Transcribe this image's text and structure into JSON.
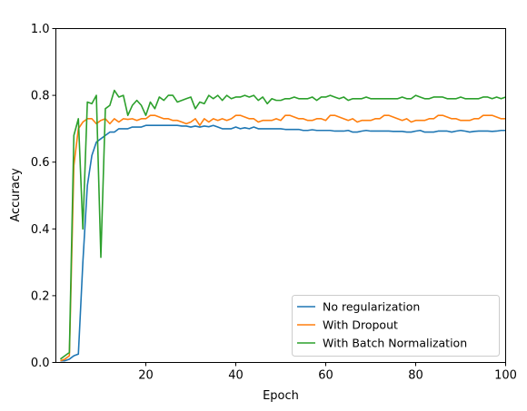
{
  "chart_data": {
    "type": "line",
    "xlabel": "Epoch",
    "ylabel": "Accuracy",
    "xlim": [
      0,
      100
    ],
    "ylim": [
      0,
      1.0
    ],
    "xticks": [
      20,
      40,
      60,
      80,
      100
    ],
    "xtick_labels": [
      "20",
      "40",
      "60",
      "80",
      "100"
    ],
    "yticks": [
      0.0,
      0.2,
      0.4,
      0.6,
      0.8,
      1.0
    ],
    "ytick_labels": [
      "0.0",
      "0.2",
      "0.4",
      "0.6",
      "0.8",
      "1.0"
    ],
    "grid": false,
    "legend_position": "lower-right",
    "x": [
      1,
      2,
      3,
      4,
      5,
      6,
      7,
      8,
      9,
      10,
      11,
      12,
      13,
      14,
      15,
      16,
      17,
      18,
      19,
      20,
      21,
      22,
      23,
      24,
      25,
      26,
      27,
      28,
      29,
      30,
      31,
      32,
      33,
      34,
      35,
      36,
      37,
      38,
      39,
      40,
      41,
      42,
      43,
      44,
      45,
      46,
      47,
      48,
      49,
      50,
      51,
      52,
      53,
      54,
      55,
      56,
      57,
      58,
      59,
      60,
      61,
      62,
      63,
      64,
      65,
      66,
      67,
      68,
      69,
      70,
      71,
      72,
      73,
      74,
      75,
      76,
      77,
      78,
      79,
      80,
      81,
      82,
      83,
      84,
      85,
      86,
      87,
      88,
      89,
      90,
      91,
      92,
      93,
      94,
      95,
      96,
      97,
      98,
      99,
      100
    ],
    "series": [
      {
        "name": "No regularization",
        "color": "#1f77b4",
        "values": [
          0.005,
          0.005,
          0.01,
          0.02,
          0.025,
          0.3,
          0.53,
          0.62,
          0.66,
          0.67,
          0.68,
          0.69,
          0.69,
          0.7,
          0.7,
          0.7,
          0.705,
          0.705,
          0.705,
          0.71,
          0.71,
          0.71,
          0.71,
          0.71,
          0.71,
          0.71,
          0.71,
          0.708,
          0.708,
          0.705,
          0.708,
          0.705,
          0.708,
          0.706,
          0.71,
          0.705,
          0.7,
          0.7,
          0.7,
          0.705,
          0.7,
          0.703,
          0.7,
          0.705,
          0.7,
          0.7,
          0.7,
          0.7,
          0.7,
          0.7,
          0.698,
          0.698,
          0.698,
          0.698,
          0.695,
          0.695,
          0.697,
          0.695,
          0.695,
          0.695,
          0.695,
          0.693,
          0.693,
          0.693,
          0.695,
          0.69,
          0.69,
          0.693,
          0.695,
          0.693,
          0.693,
          0.693,
          0.693,
          0.693,
          0.692,
          0.692,
          0.692,
          0.69,
          0.69,
          0.693,
          0.695,
          0.69,
          0.69,
          0.69,
          0.693,
          0.693,
          0.693,
          0.69,
          0.693,
          0.695,
          0.693,
          0.69,
          0.692,
          0.693,
          0.693,
          0.693,
          0.692,
          0.693,
          0.695,
          0.695
        ]
      },
      {
        "name": "With Dropout",
        "color": "#ff7f0e",
        "values": [
          0.005,
          0.01,
          0.02,
          0.59,
          0.7,
          0.72,
          0.73,
          0.73,
          0.715,
          0.725,
          0.73,
          0.715,
          0.73,
          0.72,
          0.73,
          0.728,
          0.73,
          0.725,
          0.73,
          0.73,
          0.74,
          0.74,
          0.735,
          0.73,
          0.73,
          0.725,
          0.725,
          0.72,
          0.715,
          0.72,
          0.73,
          0.71,
          0.73,
          0.72,
          0.73,
          0.725,
          0.73,
          0.725,
          0.73,
          0.74,
          0.74,
          0.735,
          0.73,
          0.73,
          0.72,
          0.725,
          0.725,
          0.725,
          0.73,
          0.725,
          0.74,
          0.74,
          0.735,
          0.73,
          0.73,
          0.725,
          0.725,
          0.73,
          0.73,
          0.725,
          0.74,
          0.74,
          0.735,
          0.73,
          0.725,
          0.73,
          0.72,
          0.725,
          0.725,
          0.725,
          0.73,
          0.73,
          0.74,
          0.74,
          0.735,
          0.73,
          0.725,
          0.73,
          0.72,
          0.725,
          0.725,
          0.725,
          0.73,
          0.73,
          0.74,
          0.74,
          0.735,
          0.73,
          0.73,
          0.725,
          0.725,
          0.725,
          0.73,
          0.73,
          0.74,
          0.74,
          0.74,
          0.735,
          0.73,
          0.73
        ]
      },
      {
        "name": "With Batch Normalization",
        "color": "#2ca02c",
        "values": [
          0.01,
          0.02,
          0.03,
          0.68,
          0.73,
          0.4,
          0.78,
          0.775,
          0.8,
          0.315,
          0.76,
          0.77,
          0.815,
          0.795,
          0.8,
          0.74,
          0.77,
          0.785,
          0.77,
          0.74,
          0.78,
          0.76,
          0.795,
          0.785,
          0.8,
          0.8,
          0.78,
          0.785,
          0.79,
          0.795,
          0.76,
          0.78,
          0.775,
          0.8,
          0.79,
          0.8,
          0.785,
          0.8,
          0.79,
          0.795,
          0.795,
          0.8,
          0.795,
          0.8,
          0.785,
          0.795,
          0.775,
          0.79,
          0.785,
          0.785,
          0.79,
          0.79,
          0.795,
          0.79,
          0.79,
          0.79,
          0.795,
          0.785,
          0.795,
          0.795,
          0.8,
          0.795,
          0.79,
          0.795,
          0.785,
          0.79,
          0.79,
          0.79,
          0.795,
          0.79,
          0.79,
          0.79,
          0.79,
          0.79,
          0.79,
          0.79,
          0.795,
          0.79,
          0.79,
          0.8,
          0.795,
          0.79,
          0.79,
          0.795,
          0.795,
          0.795,
          0.79,
          0.79,
          0.79,
          0.795,
          0.79,
          0.79,
          0.79,
          0.79,
          0.795,
          0.795,
          0.79,
          0.795,
          0.79,
          0.795
        ]
      }
    ]
  }
}
